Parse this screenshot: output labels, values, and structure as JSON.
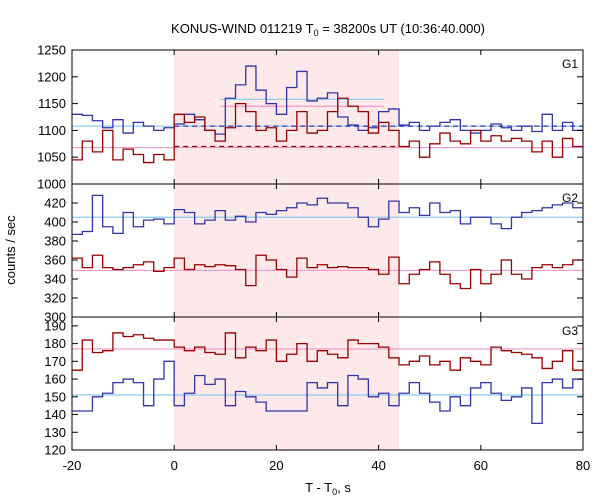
{
  "chart_data": {
    "type": "line",
    "title": {
      "main": "KONUS-WIND 011219 T",
      "sub": "0",
      "rest": " = 38200s UT (10:36:40.000)"
    },
    "xlabel": {
      "main": "T - T",
      "sub": "0",
      "rest": ", s"
    },
    "ylabel": "counts / sec",
    "xlim": [
      -20,
      80
    ],
    "xticks": [
      "-20",
      "0",
      "20",
      "40",
      "60",
      "80"
    ],
    "highlight_interval": [
      0,
      44
    ],
    "colors": {
      "highlight": "#fde8ea",
      "blue_series": "#3333aa",
      "red_series": "#990000",
      "blue_level": "#88ccee",
      "red_level": "#ee99cc",
      "frame": "#000000"
    },
    "panels": [
      {
        "label": "G1",
        "ylim": [
          1000,
          1250
        ],
        "yticks": [
          "1000",
          "1050",
          "1100",
          "1150",
          "1200",
          "1250"
        ],
        "series": [
          {
            "color_key": "blue_series",
            "x": [
              -20,
              -18,
              -16,
              -14,
              -12,
              -10,
              -8,
              -6,
              -4,
              -2,
              0,
              2,
              4,
              6,
              8,
              10,
              12,
              14,
              16,
              18,
              20,
              22,
              24,
              26,
              28,
              30,
              32,
              34,
              36,
              38,
              40,
              42,
              44,
              46,
              48,
              50,
              52,
              54,
              56,
              58,
              60,
              62,
              64,
              66,
              68,
              70,
              72,
              74,
              76,
              78
            ],
            "values": [
              1130,
              1128,
              1118,
              1105,
              1120,
              1095,
              1115,
              1108,
              1100,
              1105,
              1112,
              1130,
              1120,
              1100,
              1093,
              1160,
              1185,
              1220,
              1175,
              1150,
              1130,
              1180,
              1210,
              1155,
              1160,
              1170,
              1125,
              1110,
              1100,
              1105,
              1135,
              1140,
              1110,
              1115,
              1100,
              1108,
              1115,
              1120,
              1100,
              1095,
              1100,
              1112,
              1105,
              1100,
              1108,
              1098,
              1130,
              1100,
              1115,
              1100
            ]
          },
          {
            "color_key": "red_series",
            "x": [
              -20,
              -18,
              -16,
              -14,
              -12,
              -10,
              -8,
              -6,
              -4,
              -2,
              0,
              2,
              4,
              6,
              8,
              10,
              12,
              14,
              16,
              18,
              20,
              22,
              24,
              26,
              28,
              30,
              32,
              34,
              36,
              38,
              40,
              42,
              44,
              46,
              48,
              50,
              52,
              54,
              56,
              58,
              60,
              62,
              64,
              66,
              68,
              70,
              72,
              74,
              76,
              78
            ],
            "values": [
              1045,
              1080,
              1060,
              1100,
              1045,
              1065,
              1055,
              1040,
              1055,
              1045,
              1130,
              1115,
              1125,
              1100,
              1080,
              1105,
              1150,
              1135,
              1100,
              1105,
              1080,
              1100,
              1135,
              1095,
              1100,
              1135,
              1160,
              1145,
              1135,
              1095,
              1115,
              1100,
              1070,
              1080,
              1050,
              1075,
              1095,
              1080,
              1075,
              1100,
              1080,
              1090,
              1080,
              1085,
              1080,
              1060,
              1080,
              1050,
              1085,
              1070
            ]
          }
        ],
        "levels": [
          {
            "color_key": "blue_level",
            "x": [
              -20,
              80
            ],
            "y": 1108,
            "dashed": false
          },
          {
            "color_key": "red_level",
            "x": [
              -20,
              80
            ],
            "y": 1068,
            "dashed": false
          },
          {
            "color_key": "blue_level",
            "x": [
              9,
              41
            ],
            "y": 1158,
            "dashed": false
          },
          {
            "color_key": "red_level",
            "x": [
              9,
              41
            ],
            "y": 1145,
            "dashed": false
          },
          {
            "color_key": "blue_series",
            "x": [
              0,
              80
            ],
            "y": 1108,
            "dashed": true
          },
          {
            "color_key": "red_series",
            "x": [
              0,
              44
            ],
            "y": 1070,
            "dashed": true
          }
        ]
      },
      {
        "label": "G2",
        "ylim": [
          300,
          440
        ],
        "yticks": [
          "300",
          "320",
          "340",
          "360",
          "380",
          "400",
          "420"
        ],
        "series": [
          {
            "color_key": "blue_series",
            "x": [
              -20,
              -18,
              -16,
              -14,
              -12,
              -10,
              -8,
              -6,
              -4,
              -2,
              0,
              2,
              4,
              6,
              8,
              10,
              12,
              14,
              16,
              18,
              20,
              22,
              24,
              26,
              28,
              30,
              32,
              34,
              36,
              38,
              40,
              42,
              44,
              46,
              48,
              50,
              52,
              54,
              56,
              58,
              60,
              62,
              64,
              66,
              68,
              70,
              72,
              74,
              76,
              78
            ],
            "values": [
              387,
              390,
              428,
              395,
              388,
              410,
              395,
              402,
              403,
              398,
              413,
              410,
              398,
              402,
              412,
              402,
              406,
              400,
              410,
              408,
              412,
              415,
              420,
              418,
              425,
              420,
              420,
              415,
              405,
              395,
              403,
              422,
              410,
              415,
              407,
              420,
              410,
              412,
              398,
              405,
              405,
              398,
              393,
              405,
              410,
              412,
              415,
              418,
              420,
              415
            ]
          },
          {
            "color_key": "red_series",
            "x": [
              -20,
              -18,
              -16,
              -14,
              -12,
              -10,
              -8,
              -6,
              -4,
              -2,
              0,
              2,
              4,
              6,
              8,
              10,
              12,
              14,
              16,
              18,
              20,
              22,
              24,
              26,
              28,
              30,
              32,
              34,
              36,
              38,
              40,
              42,
              44,
              46,
              48,
              50,
              52,
              54,
              56,
              58,
              60,
              62,
              64,
              66,
              68,
              70,
              72,
              74,
              76,
              78
            ],
            "values": [
              362,
              352,
              365,
              352,
              350,
              352,
              355,
              358,
              348,
              352,
              362,
              350,
              355,
              353,
              355,
              354,
              350,
              333,
              365,
              360,
              350,
              342,
              362,
              352,
              355,
              352,
              353,
              352,
              352,
              350,
              345,
              363,
              335,
              345,
              350,
              358,
              345,
              335,
              330,
              350,
              335,
              345,
              360,
              345,
              340,
              352,
              355,
              352,
              355,
              360
            ]
          }
        ],
        "levels": [
          {
            "color_key": "blue_level",
            "x": [
              -20,
              80
            ],
            "y": 405,
            "dashed": false
          },
          {
            "color_key": "red_level",
            "x": [
              -20,
              80
            ],
            "y": 349,
            "dashed": false
          }
        ]
      },
      {
        "label": "G3",
        "ylim": [
          120,
          195
        ],
        "yticks": [
          "120",
          "130",
          "140",
          "150",
          "160",
          "170",
          "180",
          "190"
        ],
        "series": [
          {
            "color_key": "red_series",
            "x": [
              -20,
              -18,
              -16,
              -14,
              -12,
              -10,
              -8,
              -6,
              -4,
              -2,
              0,
              2,
              4,
              6,
              8,
              10,
              12,
              14,
              16,
              18,
              20,
              22,
              24,
              26,
              28,
              30,
              32,
              34,
              36,
              38,
              40,
              42,
              44,
              46,
              48,
              50,
              52,
              54,
              56,
              58,
              60,
              62,
              64,
              66,
              68,
              70,
              72,
              74,
              76,
              78
            ],
            "values": [
              165,
              182,
              175,
              176,
              186,
              184,
              185,
              183,
              182,
              182,
              178,
              176,
              178,
              175,
              174,
              186,
              172,
              178,
              176,
              182,
              170,
              174,
              180,
              170,
              176,
              174,
              172,
              182,
              180,
              180,
              178,
              172,
              168,
              170,
              173,
              168,
              170,
              165,
              172,
              170,
              168,
              178,
              176,
              175,
              174,
              172,
              166,
              170,
              176,
              165
            ]
          },
          {
            "color_key": "blue_series",
            "x": [
              -20,
              -18,
              -16,
              -14,
              -12,
              -10,
              -8,
              -6,
              -4,
              -2,
              0,
              2,
              4,
              6,
              8,
              10,
              12,
              14,
              16,
              18,
              20,
              22,
              24,
              26,
              28,
              30,
              32,
              34,
              36,
              38,
              40,
              42,
              44,
              46,
              48,
              50,
              52,
              54,
              56,
              58,
              60,
              62,
              64,
              66,
              68,
              70,
              72,
              74,
              76,
              78
            ],
            "values": [
              142,
              142,
              150,
              152,
              158,
              160,
              158,
              145,
              160,
              170,
              145,
              152,
              162,
              157,
              160,
              145,
              153,
              150,
              147,
              142,
              142,
              142,
              142,
              158,
              155,
              158,
              145,
              162,
              160,
              150,
              152,
              145,
              152,
              158,
              152,
              147,
              142,
              150,
              145,
              155,
              158,
              152,
              148,
              150,
              155,
              135,
              158,
              160,
              155,
              160
            ]
          }
        ],
        "levels": [
          {
            "color_key": "red_level",
            "x": [
              -20,
              80
            ],
            "y": 177,
            "dashed": false
          },
          {
            "color_key": "blue_level",
            "x": [
              -20,
              80
            ],
            "y": 151,
            "dashed": false
          }
        ]
      }
    ]
  }
}
